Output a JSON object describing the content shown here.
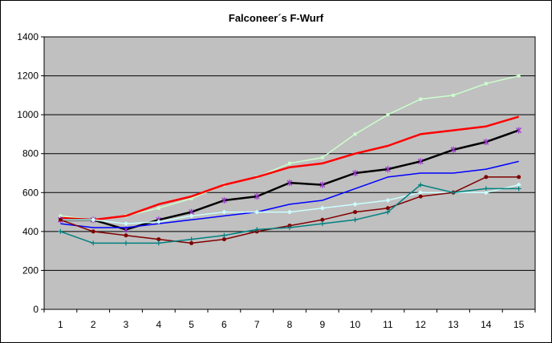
{
  "chart_data": {
    "type": "line",
    "title": "Falconeer´s F-Wurf",
    "xlabel": "",
    "ylabel": "",
    "x": [
      1,
      2,
      3,
      4,
      5,
      6,
      7,
      8,
      9,
      10,
      11,
      12,
      13,
      14,
      15
    ],
    "ylim": [
      0,
      1400
    ],
    "yticks": [
      0,
      200,
      400,
      600,
      800,
      1000,
      1200,
      1400
    ],
    "grid": true,
    "legend": "none",
    "plot_background": "#c0c0c0",
    "series": [
      {
        "color": "#ccffcc",
        "marker": "square",
        "width": 1.5,
        "values": [
          480,
          460,
          480,
          520,
          570,
          640,
          680,
          750,
          780,
          900,
          1000,
          1080,
          1100,
          1160,
          1200
        ]
      },
      {
        "color": "#ff0000",
        "marker": "none",
        "width": 2.5,
        "values": [
          470,
          460,
          480,
          540,
          580,
          640,
          680,
          730,
          750,
          800,
          840,
          900,
          920,
          940,
          990
        ]
      },
      {
        "color": "#000000",
        "marker": "star",
        "width": 2.5,
        "values": [
          460,
          460,
          410,
          460,
          500,
          560,
          580,
          650,
          640,
          700,
          720,
          760,
          820,
          860,
          920
        ]
      },
      {
        "color": "#0000ff",
        "marker": "none",
        "width": 1.5,
        "values": [
          440,
          420,
          420,
          440,
          460,
          480,
          500,
          540,
          560,
          620,
          680,
          700,
          700,
          720,
          760
        ]
      },
      {
        "color": "#ccffff",
        "marker": "diamond",
        "width": 1.5,
        "values": [
          460,
          460,
          440,
          450,
          480,
          500,
          500,
          500,
          520,
          540,
          560,
          600,
          600,
          600,
          640
        ]
      },
      {
        "color": "#800000",
        "marker": "circle",
        "width": 1.5,
        "values": [
          460,
          400,
          380,
          360,
          340,
          360,
          400,
          430,
          460,
          500,
          520,
          580,
          600,
          680,
          680
        ]
      },
      {
        "color": "#008080",
        "marker": "plus",
        "width": 1.5,
        "values": [
          400,
          340,
          340,
          340,
          360,
          380,
          410,
          420,
          440,
          460,
          500,
          640,
          600,
          620,
          620
        ]
      }
    ]
  }
}
